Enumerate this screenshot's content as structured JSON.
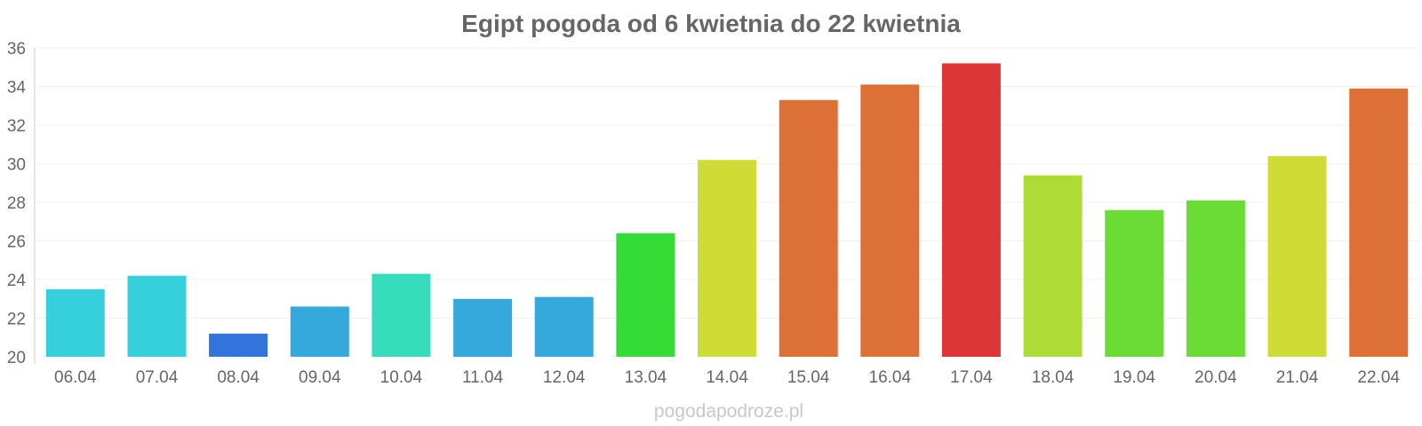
{
  "chart_data": {
    "type": "bar",
    "title": "Egipt pogoda od 6 kwietnia do 22 kwietnia",
    "xlabel": "",
    "ylabel": "",
    "categories": [
      "06.04",
      "07.04",
      "08.04",
      "09.04",
      "10.04",
      "11.04",
      "12.04",
      "13.04",
      "14.04",
      "15.04",
      "16.04",
      "17.04",
      "18.04",
      "19.04",
      "20.04",
      "21.04",
      "22.04"
    ],
    "values": [
      23.5,
      24.2,
      21.2,
      22.6,
      24.3,
      23.0,
      23.1,
      26.4,
      30.2,
      33.3,
      34.1,
      35.2,
      29.4,
      27.6,
      28.1,
      30.4,
      33.9
    ],
    "colors": [
      "#36cfdc",
      "#36cfdc",
      "#3273dc",
      "#36a9dc",
      "#36dcbb",
      "#36a9dc",
      "#36a9dc",
      "#36dc36",
      "#cfdc36",
      "#dc7036",
      "#dc7036",
      "#dc3636",
      "#addc36",
      "#6bdc36",
      "#6bdc36",
      "#cfdc36",
      "#dc7036"
    ],
    "ylim": [
      20,
      36
    ],
    "yticks": [
      20,
      22,
      24,
      26,
      28,
      30,
      32,
      34,
      36
    ],
    "grid": true,
    "legend": "none"
  },
  "watermark": "pogodapodroze.pl"
}
